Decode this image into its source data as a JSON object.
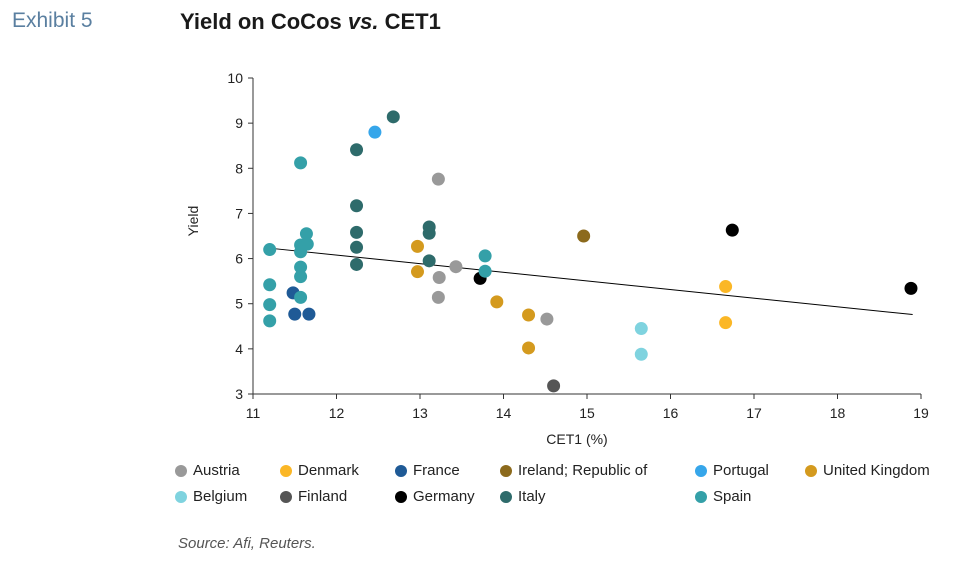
{
  "header": {
    "exhibit": "Exhibit 5",
    "title_main": "Yield on CoCos ",
    "title_vs": "vs.",
    "title_tail": " CET1"
  },
  "source": "Source: Afi, Reuters.",
  "colors": {
    "Austria": "#999999",
    "Denmark": "#fbb726",
    "France": "#1f5a96",
    "Ireland": "#8c6a1c",
    "Portugal": "#36a6ea",
    "United Kingdom": "#d49a1e",
    "Belgium": "#7fd3df",
    "Finland": "#555555",
    "Germany": "#000000",
    "Italy": "#2e6b6b",
    "Spain": "#34a0a8"
  },
  "chart_data": {
    "type": "scatter",
    "title": "Yield on CoCos vs. CET1",
    "xlabel": "CET1 (%)",
    "ylabel": "Yield",
    "xlim": [
      11,
      19
    ],
    "ylim": [
      3,
      10
    ],
    "xticks": [
      "11",
      "12",
      "13",
      "14",
      "15",
      "16",
      "17",
      "18",
      "19"
    ],
    "yticks": [
      "3",
      "4",
      "5",
      "6",
      "7",
      "8",
      "9",
      "10"
    ],
    "grid": false,
    "legend_position": "bottom",
    "trendline": {
      "x": [
        11.2,
        18.9
      ],
      "y": [
        6.23,
        4.76
      ]
    },
    "series": [
      {
        "name": "Austria",
        "points": [
          [
            13.22,
            7.76
          ],
          [
            13.43,
            5.82
          ],
          [
            13.23,
            5.58
          ],
          [
            13.22,
            5.14
          ],
          [
            14.52,
            4.66
          ]
        ]
      },
      {
        "name": "Denmark",
        "points": [
          [
            16.66,
            5.38
          ],
          [
            16.66,
            4.58
          ]
        ]
      },
      {
        "name": "France",
        "points": [
          [
            11.48,
            5.24
          ],
          [
            11.5,
            4.77
          ],
          [
            11.67,
            4.77
          ]
        ]
      },
      {
        "name": "Ireland; Republic of",
        "points": [
          [
            14.96,
            6.5
          ]
        ]
      },
      {
        "name": "Portugal",
        "points": [
          [
            12.46,
            8.8
          ]
        ]
      },
      {
        "name": "United Kingdom",
        "points": [
          [
            12.97,
            6.27
          ],
          [
            12.97,
            5.71
          ],
          [
            13.92,
            5.04
          ],
          [
            14.3,
            4.75
          ],
          [
            14.3,
            4.02
          ]
        ]
      },
      {
        "name": "Belgium",
        "points": [
          [
            15.65,
            4.45
          ],
          [
            15.65,
            3.88
          ]
        ]
      },
      {
        "name": "Finland",
        "points": [
          [
            14.6,
            3.18
          ]
        ]
      },
      {
        "name": "Germany",
        "points": [
          [
            13.72,
            5.56
          ],
          [
            16.74,
            6.63
          ],
          [
            18.88,
            5.34
          ]
        ]
      },
      {
        "name": "Italy",
        "points": [
          [
            12.68,
            9.14
          ],
          [
            12.24,
            8.41
          ],
          [
            12.24,
            7.17
          ],
          [
            12.24,
            6.58
          ],
          [
            12.24,
            6.25
          ],
          [
            12.24,
            5.87
          ],
          [
            13.11,
            6.7
          ],
          [
            13.11,
            6.56
          ],
          [
            13.11,
            5.95
          ]
        ]
      },
      {
        "name": "Spain",
        "points": [
          [
            11.57,
            8.12
          ],
          [
            11.2,
            6.2
          ],
          [
            11.57,
            6.3
          ],
          [
            11.64,
            6.55
          ],
          [
            11.65,
            6.32
          ],
          [
            11.57,
            6.15
          ],
          [
            11.57,
            5.81
          ],
          [
            11.57,
            5.6
          ],
          [
            11.2,
            5.42
          ],
          [
            11.57,
            5.14
          ],
          [
            11.2,
            4.98
          ],
          [
            11.2,
            4.62
          ],
          [
            13.78,
            6.06
          ],
          [
            13.78,
            5.72
          ]
        ]
      }
    ]
  }
}
